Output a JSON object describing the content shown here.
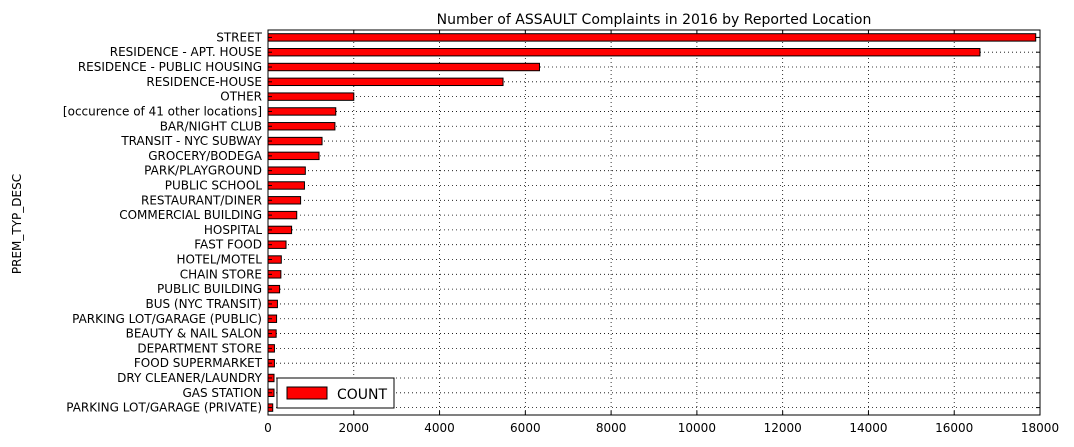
{
  "chart_data": {
    "type": "bar",
    "orientation": "horizontal",
    "title": "Number of ASSAULT Complaints in 2016 by Reported Location",
    "xlabel": "",
    "ylabel": "PREM_TYP_DESC",
    "xlim": [
      0,
      18000
    ],
    "xticks": [
      0,
      2000,
      4000,
      6000,
      8000,
      10000,
      12000,
      14000,
      16000,
      18000
    ],
    "grid": true,
    "legend_position": "lower-left",
    "bar_color": "#ff0000",
    "categories": [
      "STREET",
      "RESIDENCE - APT. HOUSE",
      "RESIDENCE - PUBLIC HOUSING",
      "RESIDENCE-HOUSE",
      "OTHER",
      "[occurence of 41 other locations]",
      "BAR/NIGHT CLUB",
      "TRANSIT - NYC SUBWAY",
      "GROCERY/BODEGA",
      "PARK/PLAYGROUND",
      "PUBLIC SCHOOL",
      "RESTAURANT/DINER",
      "COMMERCIAL BUILDING",
      "HOSPITAL",
      "FAST FOOD",
      "HOTEL/MOTEL",
      "CHAIN STORE",
      "PUBLIC BUILDING",
      "BUS (NYC TRANSIT)",
      "PARKING LOT/GARAGE (PUBLIC)",
      "BEAUTY & NAIL SALON",
      "DEPARTMENT STORE",
      "FOOD SUPERMARKET",
      "DRY CLEANER/LAUNDRY",
      "GAS STATION",
      "PARKING LOT/GARAGE (PRIVATE)"
    ],
    "series": [
      {
        "name": "COUNT",
        "values": [
          17900,
          16600,
          6330,
          5480,
          2000,
          1580,
          1560,
          1260,
          1190,
          870,
          850,
          760,
          670,
          550,
          420,
          310,
          300,
          270,
          220,
          200,
          190,
          150,
          150,
          140,
          140,
          110
        ]
      }
    ]
  }
}
